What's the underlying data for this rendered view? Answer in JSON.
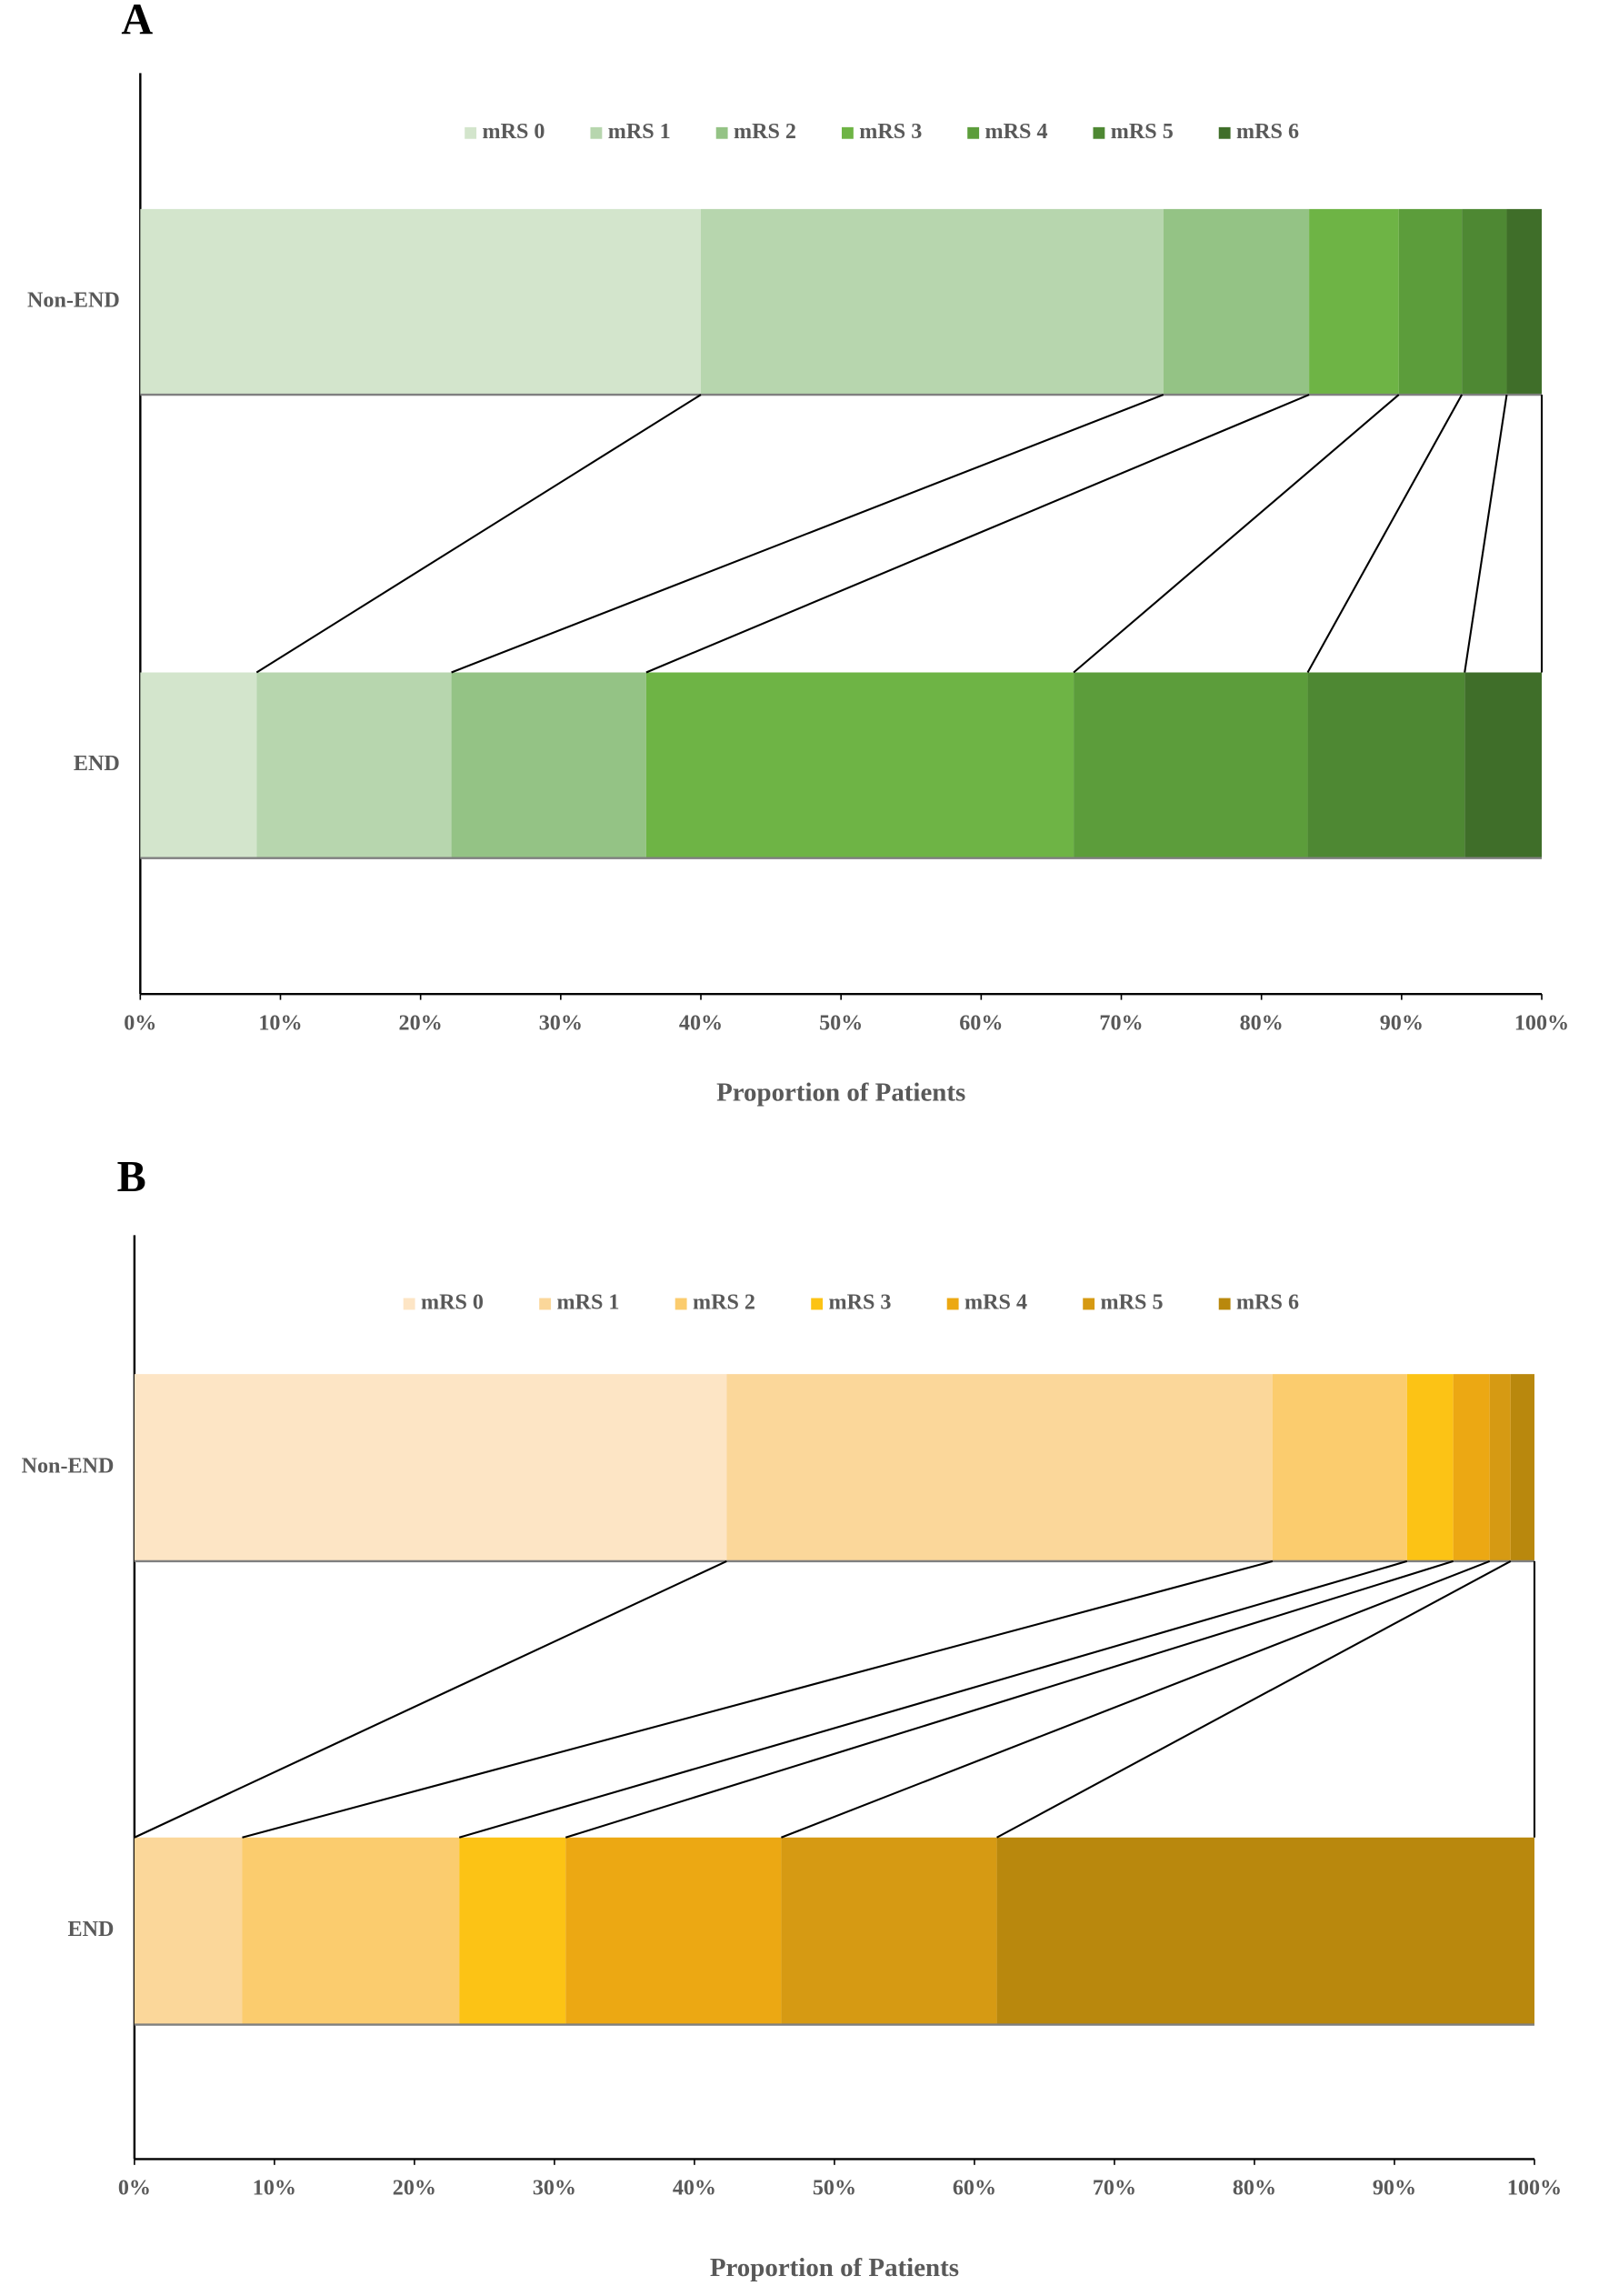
{
  "chart_data": [
    {
      "type": "bar",
      "orientation": "horizontal",
      "stacked": true,
      "panel": "A",
      "categories": [
        "Non-END",
        "END"
      ],
      "series": [
        {
          "name": "mRS 0",
          "color": "#d3e5cc",
          "values": [
            40.0,
            8.3
          ]
        },
        {
          "name": "mRS 1",
          "color": "#b7d6ae",
          "values": [
            33.0,
            13.9
          ]
        },
        {
          "name": "mRS 2",
          "color": "#94c385",
          "values": [
            10.4,
            13.9
          ]
        },
        {
          "name": "mRS 3",
          "color": "#6eb445",
          "values": [
            6.4,
            30.5
          ]
        },
        {
          "name": "mRS 4",
          "color": "#5c9d3b",
          "values": [
            4.5,
            16.7
          ]
        },
        {
          "name": "mRS 5",
          "color": "#4e8833",
          "values": [
            3.2,
            11.2
          ]
        },
        {
          "name": "mRS 6",
          "color": "#3f6e29",
          "values": [
            2.5,
            5.5
          ]
        }
      ],
      "xlim": [
        0,
        100
      ],
      "xticks": [
        {
          "value": 0,
          "label": "0%"
        },
        {
          "value": 10,
          "label": "10%"
        },
        {
          "value": 20,
          "label": "20%"
        },
        {
          "value": 30,
          "label": "30%"
        },
        {
          "value": 40,
          "label": "40%"
        },
        {
          "value": 50,
          "label": "50%"
        },
        {
          "value": 60,
          "label": "60%"
        },
        {
          "value": 70,
          "label": "70%"
        },
        {
          "value": 80,
          "label": "80%"
        },
        {
          "value": 90,
          "label": "90%"
        },
        {
          "value": 100,
          "label": "100%"
        }
      ],
      "x_label": "Proportion of Patients",
      "legend": "top"
    },
    {
      "type": "bar",
      "orientation": "horizontal",
      "stacked": true,
      "panel": "B",
      "categories": [
        "Non-END",
        "END"
      ],
      "series": [
        {
          "name": "mRS 0",
          "color": "#fde5c5",
          "values": [
            42.3,
            0
          ]
        },
        {
          "name": "mRS 1",
          "color": "#fbd79a",
          "values": [
            39.0,
            7.7
          ]
        },
        {
          "name": "mRS 2",
          "color": "#fbcc6e",
          "values": [
            9.6,
            15.5
          ]
        },
        {
          "name": "mRS 3",
          "color": "#fcc315",
          "values": [
            3.3,
            7.6
          ]
        },
        {
          "name": "mRS 4",
          "color": "#eca813",
          "values": [
            2.6,
            15.4
          ]
        },
        {
          "name": "mRS 5",
          "color": "#d69a13",
          "values": [
            1.5,
            15.4
          ]
        },
        {
          "name": "mRS 6",
          "color": "#b9880d",
          "values": [
            1.7,
            38.4
          ]
        }
      ],
      "xlim": [
        0,
        100
      ],
      "xticks": [
        {
          "value": 0,
          "label": "0%"
        },
        {
          "value": 10,
          "label": "10%"
        },
        {
          "value": 20,
          "label": "20%"
        },
        {
          "value": 30,
          "label": "30%"
        },
        {
          "value": 40,
          "label": "40%"
        },
        {
          "value": 50,
          "label": "50%"
        },
        {
          "value": 60,
          "label": "60%"
        },
        {
          "value": 70,
          "label": "70%"
        },
        {
          "value": 80,
          "label": "80%"
        },
        {
          "value": 90,
          "label": "90%"
        },
        {
          "value": 100,
          "label": "100%"
        }
      ],
      "x_label": "Proportion of Patients",
      "legend": "top"
    }
  ]
}
